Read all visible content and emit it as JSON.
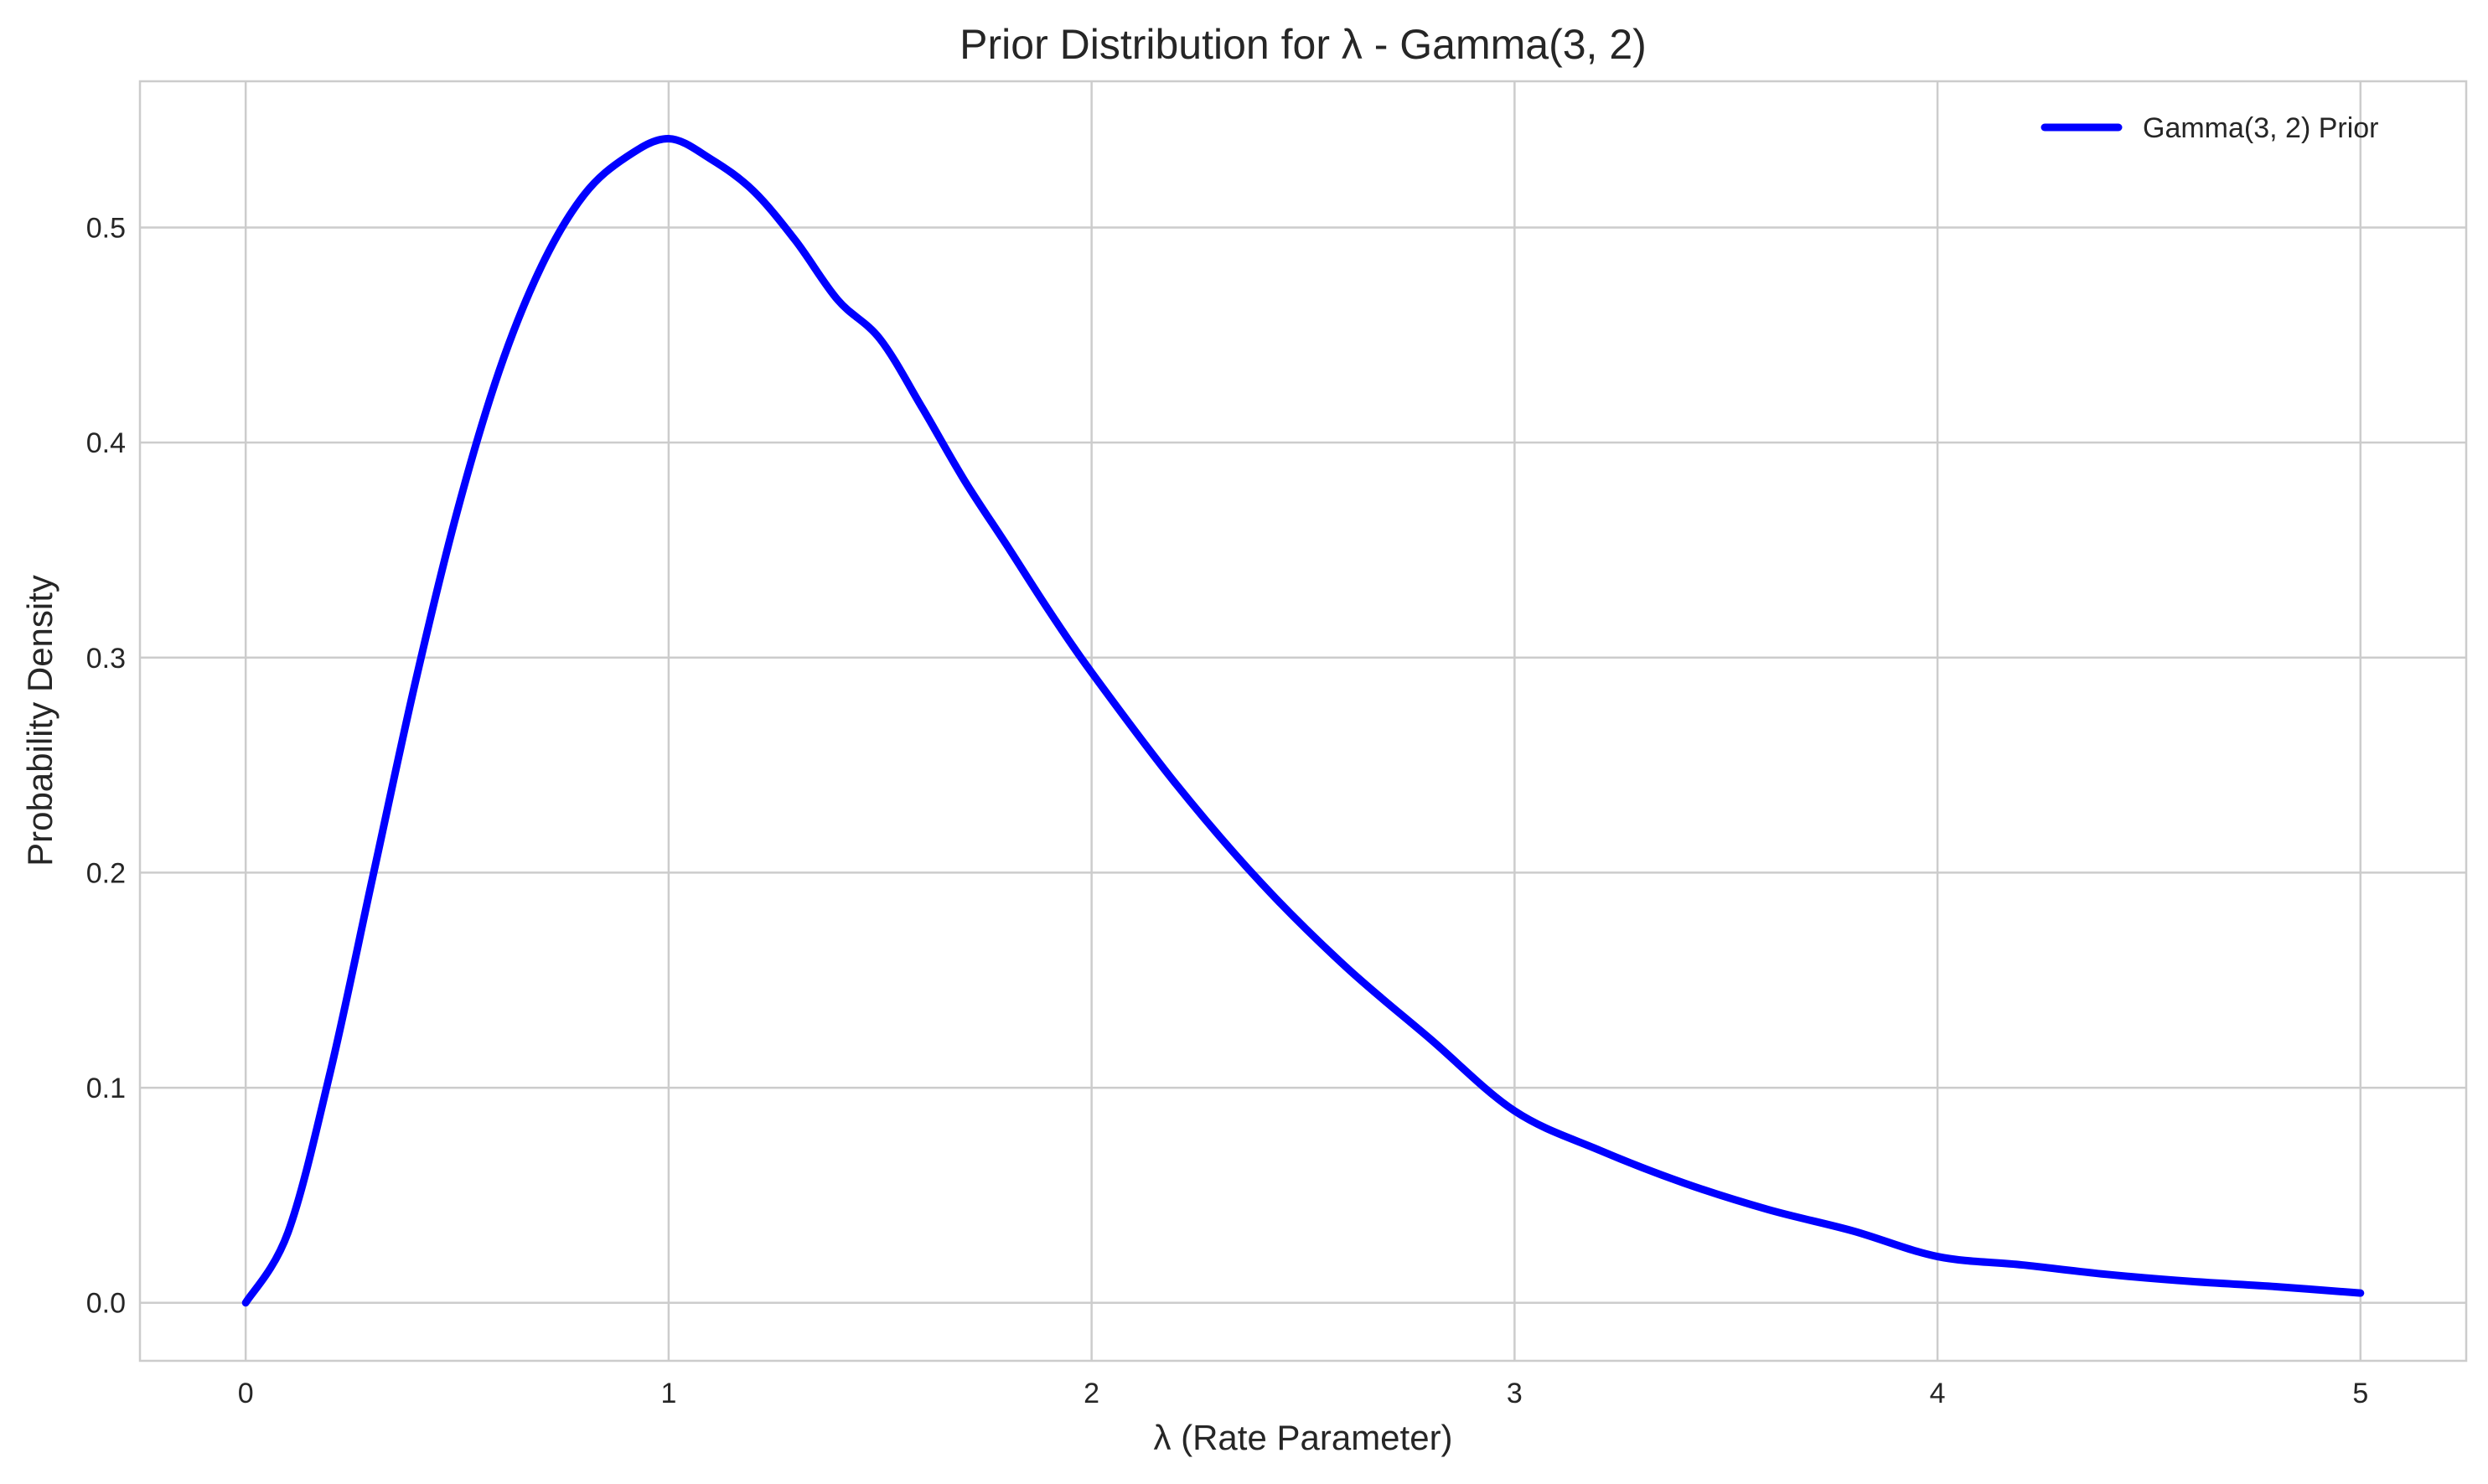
{
  "chart_data": {
    "type": "line",
    "title": "Prior Distribution for λ - Gamma(3, 2)",
    "xlabel": "λ (Rate Parameter)",
    "ylabel": "Probability Density",
    "xlim": [
      -0.25,
      5.25
    ],
    "ylim": [
      -0.027,
      0.568
    ],
    "xticks": [
      0,
      1,
      2,
      3,
      4,
      5
    ],
    "yticks": [
      0.0,
      0.1,
      0.2,
      0.3,
      0.4,
      0.5
    ],
    "xtick_labels": [
      "0",
      "1",
      "2",
      "3",
      "4",
      "5"
    ],
    "ytick_labels": [
      "0.0",
      "0.1",
      "0.2",
      "0.3",
      "0.4",
      "0.5"
    ],
    "grid": true,
    "legend_position": "top-right",
    "series": [
      {
        "name": "Gamma(3, 2) Prior",
        "color": "#0000ff",
        "x": [
          0,
          0.1,
          0.2,
          0.3,
          0.4,
          0.5,
          0.6,
          0.7,
          0.8,
          0.9,
          1.0,
          1.1,
          1.2,
          1.3,
          1.4,
          1.5,
          1.6,
          1.7,
          1.8,
          1.9,
          2.0,
          2.2,
          2.4,
          2.6,
          2.8,
          3.0,
          3.2,
          3.4,
          3.6,
          3.8,
          4.0,
          4.2,
          4.4,
          4.6,
          4.8,
          5.0
        ],
        "y": [
          0.0,
          0.0327,
          0.1073,
          0.1976,
          0.2876,
          0.3679,
          0.4337,
          0.4823,
          0.5152,
          0.5328,
          0.5413,
          0.5318,
          0.5171,
          0.4939,
          0.4663,
          0.4481,
          0.416,
          0.3822,
          0.3521,
          0.3216,
          0.2931,
          0.2411,
          0.1954,
          0.1564,
          0.1228,
          0.0892,
          0.071,
          0.0557,
          0.0433,
          0.0334,
          0.0215,
          0.0176,
          0.0132,
          0.0099,
          0.0075,
          0.0045
        ]
      }
    ]
  }
}
